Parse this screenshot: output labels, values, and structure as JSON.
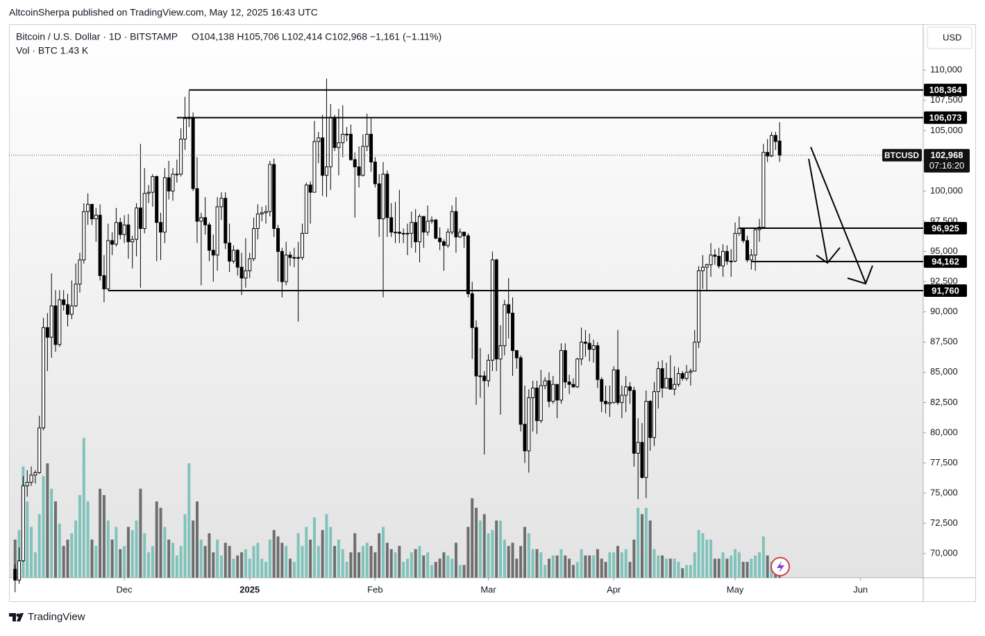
{
  "header": "AltcoinSherpa published on TradingView.com, May 12, 2025 16:43 UTC",
  "footer": "TradingView",
  "chart_data": {
    "type": "candlestick",
    "title": "Bitcoin / U.S. Dollar · 1D · BITSTAMP",
    "subtitle": "O104,138 H105,706 L102,414 C102,968 −1,161 (−1.11%)",
    "volume_label": "Vol · BTC 1.43 K",
    "currency": "USD",
    "symbol": "BTCUSD",
    "countdown": "07:16:20",
    "last_price": {
      "value": 102968,
      "label": "102,968"
    },
    "up_color": "#ffffff",
    "down_color": "#000000",
    "volume_up_color": "#7fc3bb",
    "volume_down_color": "#6e6e6e",
    "open": [
      68700,
      67800,
      69400,
      75600,
      75900,
      76500,
      76700,
      80400,
      88700,
      87900,
      90500,
      87300,
      91000,
      90600,
      89800,
      90500,
      92300,
      94300,
      98300,
      98900,
      97700,
      98000,
      93000,
      91900,
      95900,
      95600,
      97400,
      96400,
      97200,
      95800,
      96000,
      98600,
      96900,
      99800,
      99900,
      101200,
      97400,
      96600,
      101100,
      100000,
      101400,
      101400,
      104300,
      106000,
      106100,
      100200,
      97500,
      97800,
      97200,
      95100,
      94700,
      98700,
      99400,
      95700,
      94200,
      95100,
      93700,
      92800,
      93400,
      94400,
      96900,
      98100,
      98200,
      98300,
      102200,
      96900,
      95000,
      92500,
      94700,
      94500,
      94500,
      94500,
      96500,
      100500,
      99900,
      104100,
      104400,
      101300,
      102000,
      106100,
      103600,
      104000,
      104700,
      104700,
      102600,
      102000,
      101300,
      103700,
      104700,
      102400,
      100600,
      97700,
      101400,
      97800,
      96600,
      96600,
      96500,
      96500,
      96500,
      97400,
      95800,
      97900,
      96600,
      97500,
      97600,
      96100,
      95800,
      95500,
      96600,
      98300,
      96200,
      96600,
      96300,
      91500,
      88700,
      84700,
      84700,
      84300,
      86000,
      94300,
      86100,
      87200,
      90600,
      89900,
      86800,
      86200,
      80700,
      78500,
      82900,
      83700,
      81000,
      83900,
      84300,
      82600,
      84000,
      82700,
      86800,
      84200,
      84000,
      83800,
      86100,
      87500,
      87400,
      86900,
      87200,
      84400,
      82600,
      82400,
      82500,
      85200,
      82500,
      83100,
      83800,
      83500,
      78300,
      79200,
      76300,
      82600,
      79600,
      83400,
      85300,
      83700,
      84500,
      83600,
      84000,
      84900,
      84500,
      85000,
      85100,
      87500,
      93400,
      93700,
      93900,
      94700,
      94600,
      93800,
      95000,
      94200,
      94200,
      96500,
      96900,
      95900,
      94300,
      94700,
      96800,
      97000,
      103200,
      102900,
      104600,
      104138
    ],
    "high": [
      69100,
      70500,
      76400,
      76900,
      77200,
      76900,
      81400,
      89500,
      89900,
      93200,
      91800,
      91800,
      91800,
      91500,
      92600,
      94000,
      94900,
      99000,
      99800,
      98900,
      98600,
      98900,
      94700,
      97300,
      96600,
      98600,
      97800,
      98000,
      98100,
      96300,
      99000,
      103900,
      101900,
      100500,
      101400,
      101300,
      98200,
      101900,
      102500,
      101900,
      102600,
      105200,
      107800,
      108300,
      106500,
      102800,
      98200,
      99500,
      97400,
      96400,
      99500,
      99900,
      99900,
      97300,
      95500,
      95200,
      94900,
      96100,
      94900,
      97800,
      98900,
      98700,
      98800,
      102500,
      102700,
      97200,
      95300,
      95800,
      95000,
      95300,
      95800,
      97300,
      100700,
      100800,
      105800,
      104900,
      106300,
      109300,
      107200,
      106300,
      106800,
      107100,
      105300,
      105500,
      103200,
      103700,
      104700,
      106400,
      106000,
      102800,
      101400,
      102400,
      101700,
      99000,
      99100,
      100100,
      96900,
      97300,
      98300,
      98500,
      98100,
      97900,
      98800,
      97900,
      97700,
      97000,
      96000,
      96900,
      98800,
      99500,
      96900,
      96600,
      96500,
      92500,
      89300,
      87000,
      85100,
      86500,
      95000,
      94400,
      88900,
      91000,
      92800,
      91200,
      86800,
      86400,
      83900,
      83600,
      84300,
      84300,
      85200,
      84600,
      85000,
      84700,
      84000,
      87400,
      87400,
      84800,
      84500,
      86200,
      88700,
      88500,
      88200,
      87700,
      87500,
      84600,
      83900,
      83900,
      85500,
      88500,
      83900,
      84700,
      84200,
      83800,
      81200,
      80800,
      83500,
      82700,
      84200,
      85900,
      86000,
      85800,
      86400,
      85500,
      85400,
      85100,
      85600,
      85300,
      88500,
      93800,
      94700,
      94000,
      95700,
      95200,
      95300,
      95600,
      95500,
      95200,
      97400,
      97900,
      96900,
      96300,
      95200,
      96900,
      97700,
      103900,
      104300,
      104900,
      104900,
      105706
    ],
    "low": [
      66800,
      67500,
      69300,
      74700,
      75600,
      75800,
      76600,
      80200,
      85100,
      86200,
      86700,
      87100,
      90100,
      88800,
      89400,
      90400,
      91600,
      94000,
      97200,
      97200,
      95800,
      92600,
      90800,
      91800,
      94700,
      95400,
      96000,
      95700,
      94400,
      93600,
      94600,
      92000,
      96500,
      99000,
      98700,
      94200,
      94300,
      95700,
      99300,
      99200,
      100700,
      101200,
      103400,
      105300,
      100000,
      95700,
      92200,
      96400,
      94200,
      92500,
      93400,
      97600,
      95200,
      93300,
      94000,
      93000,
      91400,
      92000,
      92800,
      94200,
      96000,
      97500,
      97300,
      97900,
      96200,
      92500,
      91200,
      92200,
      93800,
      93700,
      89200,
      94300,
      96500,
      97300,
      99900,
      102300,
      99600,
      99500,
      100100,
      103300,
      101300,
      102800,
      104100,
      102500,
      97800,
      100300,
      101200,
      103300,
      101600,
      100300,
      96200,
      91200,
      96200,
      96200,
      95700,
      95700,
      95700,
      94700,
      95300,
      94900,
      94100,
      95300,
      96300,
      97300,
      96000,
      95100,
      93400,
      95300,
      96400,
      94900,
      96100,
      95300,
      91200,
      86100,
      82300,
      82900,
      78200,
      83800,
      85100,
      85100,
      81500,
      86400,
      87800,
      84700,
      85300,
      80100,
      77500,
      76700,
      80100,
      79900,
      80800,
      83600,
      82100,
      82400,
      81200,
      82400,
      83700,
      83200,
      83700,
      83700,
      85600,
      86300,
      85900,
      85800,
      83700,
      81700,
      81600,
      81300,
      82400,
      82300,
      81200,
      81700,
      82400,
      77200,
      74500,
      76200,
      74600,
      78500,
      78900,
      82000,
      82900,
      83700,
      83600,
      83100,
      83800,
      84300,
      84300,
      83900,
      85100,
      87000,
      91900,
      91700,
      92900,
      93900,
      93600,
      92900,
      93900,
      92900,
      94100,
      96300,
      95700,
      94100,
      93500,
      93400,
      95800,
      96900,
      102400,
      102800,
      103400,
      102414
    ],
    "close": [
      67800,
      69400,
      75600,
      75900,
      76500,
      76700,
      80400,
      88700,
      87900,
      90500,
      87300,
      91000,
      90600,
      89800,
      90500,
      92300,
      94300,
      98300,
      98900,
      97700,
      98000,
      93000,
      91900,
      95900,
      95600,
      97400,
      96400,
      97200,
      95800,
      96000,
      98600,
      96900,
      99800,
      99900,
      101200,
      97400,
      96600,
      101100,
      100000,
      101400,
      101400,
      104300,
      106000,
      106100,
      100200,
      97500,
      97800,
      97200,
      95100,
      94700,
      98700,
      99400,
      95700,
      94200,
      95100,
      93700,
      92800,
      93400,
      94400,
      96900,
      98100,
      98200,
      98300,
      102200,
      96900,
      95000,
      92500,
      94700,
      94500,
      94500,
      94500,
      96500,
      100500,
      99900,
      104100,
      104400,
      101300,
      102000,
      106100,
      103600,
      104000,
      104700,
      104700,
      102600,
      102000,
      101300,
      103700,
      104700,
      102400,
      100600,
      97700,
      101400,
      97800,
      96600,
      96600,
      96500,
      96500,
      96500,
      97400,
      95800,
      97900,
      96600,
      97500,
      97600,
      96100,
      95800,
      95500,
      96600,
      98300,
      96200,
      96600,
      96300,
      91500,
      88700,
      84700,
      84700,
      84300,
      86000,
      94300,
      86100,
      87200,
      90600,
      89900,
      86800,
      86200,
      80700,
      78500,
      82900,
      83700,
      81000,
      83900,
      84300,
      82600,
      84000,
      82700,
      86800,
      84200,
      84000,
      83800,
      86100,
      87500,
      87400,
      86900,
      87200,
      84400,
      82600,
      82400,
      82500,
      85200,
      82500,
      83100,
      83800,
      83500,
      78300,
      79200,
      76300,
      82600,
      79600,
      83400,
      85300,
      83700,
      84500,
      83600,
      84000,
      84900,
      84500,
      85000,
      85100,
      87500,
      93400,
      93700,
      93900,
      94700,
      94600,
      93800,
      95000,
      94200,
      94200,
      96500,
      96900,
      95900,
      94300,
      94700,
      96800,
      97000,
      103200,
      102900,
      104600,
      104100,
      102968
    ],
    "volume": [
      6.0,
      7.5,
      17.5,
      12.0,
      8.0,
      4.0,
      10.0,
      16.0,
      18.0,
      14.0,
      12.0,
      8.5,
      5.0,
      6.0,
      7.0,
      9.0,
      13.0,
      22.0,
      12.0,
      6.0,
      5.0,
      14.0,
      13.0,
      9.0,
      6.0,
      8.0,
      4.5,
      5.0,
      8.0,
      7.5,
      9.0,
      14.0,
      7.0,
      4.0,
      5.0,
      12.0,
      11.0,
      8.0,
      6.0,
      5.5,
      3.5,
      5.0,
      10.0,
      18.0,
      9.0,
      12.0,
      6.0,
      5.0,
      7.0,
      4.0,
      6.0,
      3.5,
      5.5,
      5.0,
      3.0,
      3.5,
      4.0,
      4.5,
      3.0,
      5.0,
      5.5,
      3.0,
      2.5,
      6.0,
      7.5,
      6.5,
      5.5,
      5.0,
      3.0,
      2.5,
      7.0,
      5.0,
      8.0,
      6.0,
      9.5,
      5.0,
      7.5,
      10.0,
      8.0,
      5.0,
      6.0,
      4.5,
      2.5,
      4.0,
      7.0,
      4.0,
      5.0,
      5.5,
      5.0,
      4.0,
      7.0,
      8.0,
      5.5,
      4.5,
      4.0,
      5.0,
      2.5,
      3.0,
      4.0,
      4.5,
      5.0,
      3.5,
      4.0,
      2.0,
      2.5,
      3.0,
      4.0,
      3.5,
      3.0,
      5.5,
      2.0,
      2.0,
      8.0,
      12.5,
      11.0,
      9.0,
      10.0,
      7.0,
      7.5,
      9.0,
      9.0,
      6.0,
      5.0,
      5.5,
      3.0,
      5.0,
      8.0,
      7.0,
      4.5,
      4.5,
      4.0,
      2.0,
      3.0,
      3.5,
      3.5,
      4.5,
      3.5,
      3.0,
      2.0,
      2.5,
      4.5,
      3.5,
      3.5,
      3.5,
      4.5,
      3.0,
      2.5,
      4.0,
      4.0,
      5.0,
      4.0,
      4.5,
      2.5,
      6.0,
      11.0,
      10.0,
      11.0,
      9.0,
      4.5,
      3.5,
      3.5,
      3.0,
      3.0,
      3.0,
      2.5,
      1.5,
      2.0,
      2.0,
      4.0,
      7.5,
      7.0,
      6.0,
      6.0,
      3.0,
      3.0,
      4.0,
      3.0,
      3.5,
      4.5,
      4.0,
      2.5,
      2.5,
      3.0,
      3.5,
      4.0,
      6.5,
      3.5,
      2.5,
      2.0,
      1.43
    ],
    "volume_lim": [
      0,
      24
    ],
    "ylim": [
      68000,
      113800
    ],
    "yticks": [
      {
        "value": 70000,
        "label": "70,000"
      },
      {
        "value": 72500,
        "label": "72,500"
      },
      {
        "value": 75000,
        "label": "75,000"
      },
      {
        "value": 77500,
        "label": "77,500"
      },
      {
        "value": 80000,
        "label": "80,000"
      },
      {
        "value": 82500,
        "label": "82,500"
      },
      {
        "value": 85000,
        "label": "85,000"
      },
      {
        "value": 87500,
        "label": "87,500"
      },
      {
        "value": 90000,
        "label": "90,000"
      },
      {
        "value": 92500,
        "label": "92,500"
      },
      {
        "value": 95000,
        "label": "95,000"
      },
      {
        "value": 97500,
        "label": "97,500"
      },
      {
        "value": 100000,
        "label": "100,000"
      },
      {
        "value": 102500,
        "label": "102,500"
      },
      {
        "value": 105000,
        "label": "105,000"
      },
      {
        "value": 107500,
        "label": "107,500"
      },
      {
        "value": 110000,
        "label": "110,000"
      }
    ],
    "xlim": [
      -1.5,
      224.5
    ],
    "xticks": [
      {
        "value": 27,
        "label": "Dec"
      },
      {
        "value": 58,
        "label": "2025"
      },
      {
        "value": 89,
        "label": "Feb"
      },
      {
        "value": 117,
        "label": "Mar"
      },
      {
        "value": 148,
        "label": "Apr"
      },
      {
        "value": 178,
        "label": "May"
      },
      {
        "value": 209,
        "label": "Jun"
      }
    ],
    "levels": [
      {
        "value": 108364,
        "label": "108,364",
        "from": 43
      },
      {
        "value": 106073,
        "label": "106,073",
        "from": 40
      },
      {
        "value": 96925,
        "label": "96,925",
        "from": 179
      },
      {
        "value": 94162,
        "label": "94,162",
        "from": 182
      },
      {
        "value": 91760,
        "label": "91,760",
        "from": 23
      }
    ]
  }
}
